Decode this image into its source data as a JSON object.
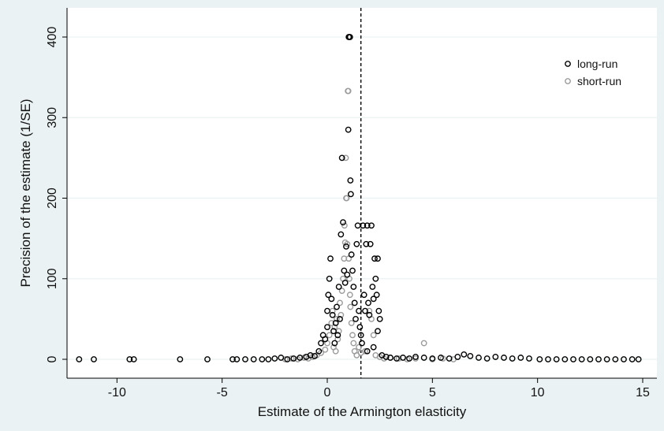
{
  "chart_data": {
    "type": "scatter",
    "title": "",
    "xlabel": "Estimate of the Armington elasticity",
    "ylabel": "Precision of the estimate (1/SE)",
    "xlim": [
      -12,
      15
    ],
    "ylim": [
      0,
      400
    ],
    "xticks": [
      -10,
      -5,
      0,
      5,
      10,
      15
    ],
    "yticks": [
      0,
      100,
      200,
      300,
      400
    ],
    "grid": "horizontal",
    "legend_position": "top-right",
    "reference_line": {
      "x": 1.6,
      "style": "dashed"
    },
    "series": [
      {
        "name": "long-run",
        "color": "#000000",
        "points": [
          [
            -11.8,
            0
          ],
          [
            -11.1,
            0
          ],
          [
            -9.4,
            0
          ],
          [
            -9.2,
            0
          ],
          [
            -7.0,
            0
          ],
          [
            -5.7,
            0
          ],
          [
            -4.5,
            0
          ],
          [
            -4.3,
            0
          ],
          [
            -3.9,
            0
          ],
          [
            -3.5,
            0
          ],
          [
            -3.1,
            0
          ],
          [
            -2.8,
            0
          ],
          [
            -2.5,
            1
          ],
          [
            -2.2,
            2
          ],
          [
            -1.9,
            0
          ],
          [
            -1.6,
            1
          ],
          [
            -1.3,
            2
          ],
          [
            -1.0,
            3
          ],
          [
            -0.8,
            5
          ],
          [
            -0.6,
            4
          ],
          [
            -0.4,
            10
          ],
          [
            -0.3,
            20
          ],
          [
            -0.2,
            30
          ],
          [
            -0.1,
            25
          ],
          [
            0.0,
            40
          ],
          [
            0.0,
            60
          ],
          [
            0.05,
            80
          ],
          [
            0.1,
            100
          ],
          [
            0.15,
            125
          ],
          [
            0.2,
            75
          ],
          [
            0.25,
            55
          ],
          [
            0.3,
            35
          ],
          [
            0.35,
            20
          ],
          [
            0.4,
            45
          ],
          [
            0.45,
            65
          ],
          [
            0.5,
            30
          ],
          [
            0.55,
            90
          ],
          [
            0.6,
            50
          ],
          [
            0.65,
            155
          ],
          [
            0.7,
            250
          ],
          [
            0.75,
            170
          ],
          [
            0.8,
            110
          ],
          [
            0.85,
            95
          ],
          [
            0.9,
            140
          ],
          [
            0.95,
            105
          ],
          [
            1.0,
            285
          ],
          [
            1.02,
            400
          ],
          [
            1.05,
            400
          ],
          [
            1.08,
            400
          ],
          [
            1.1,
            222
          ],
          [
            1.12,
            205
          ],
          [
            1.15,
            130
          ],
          [
            1.2,
            110
          ],
          [
            1.25,
            90
          ],
          [
            1.3,
            70
          ],
          [
            1.35,
            50
          ],
          [
            1.4,
            143
          ],
          [
            1.45,
            166
          ],
          [
            1.5,
            60
          ],
          [
            1.55,
            40
          ],
          [
            1.6,
            30
          ],
          [
            1.7,
            166
          ],
          [
            1.75,
            80
          ],
          [
            1.8,
            60
          ],
          [
            1.85,
            143
          ],
          [
            1.9,
            166
          ],
          [
            1.95,
            70
          ],
          [
            2.0,
            55
          ],
          [
            2.05,
            143
          ],
          [
            2.1,
            166
          ],
          [
            2.15,
            90
          ],
          [
            2.2,
            75
          ],
          [
            2.25,
            125
          ],
          [
            2.3,
            100
          ],
          [
            2.35,
            80
          ],
          [
            2.4,
            125
          ],
          [
            2.45,
            60
          ],
          [
            2.5,
            50
          ],
          [
            1.65,
            20
          ],
          [
            1.9,
            10
          ],
          [
            2.2,
            15
          ],
          [
            2.4,
            35
          ],
          [
            2.6,
            5
          ],
          [
            2.8,
            3
          ],
          [
            3.0,
            2
          ],
          [
            3.3,
            1
          ],
          [
            3.6,
            2
          ],
          [
            3.9,
            1
          ],
          [
            4.2,
            3
          ],
          [
            4.6,
            2
          ],
          [
            5.0,
            1
          ],
          [
            5.4,
            2
          ],
          [
            5.8,
            1
          ],
          [
            6.2,
            3
          ],
          [
            6.5,
            6
          ],
          [
            6.8,
            4
          ],
          [
            7.2,
            2
          ],
          [
            7.6,
            1
          ],
          [
            8.0,
            3
          ],
          [
            8.4,
            2
          ],
          [
            8.8,
            1
          ],
          [
            9.2,
            2
          ],
          [
            9.6,
            1
          ],
          [
            10.1,
            0
          ],
          [
            10.5,
            0
          ],
          [
            10.9,
            0
          ],
          [
            11.3,
            0
          ],
          [
            11.7,
            0
          ],
          [
            12.1,
            0
          ],
          [
            12.5,
            0
          ],
          [
            12.9,
            0
          ],
          [
            13.3,
            0
          ],
          [
            13.7,
            0
          ],
          [
            14.1,
            0
          ],
          [
            14.5,
            0
          ],
          [
            14.8,
            0
          ]
        ]
      },
      {
        "name": "short-run",
        "color": "#9b9b9b",
        "points": [
          [
            -2.0,
            0
          ],
          [
            -1.7,
            1
          ],
          [
            -1.4,
            0
          ],
          [
            -1.1,
            2
          ],
          [
            -0.9,
            1
          ],
          [
            -0.7,
            3
          ],
          [
            -0.5,
            5
          ],
          [
            -0.3,
            8
          ],
          [
            -0.1,
            12
          ],
          [
            0.0,
            20
          ],
          [
            0.1,
            30
          ],
          [
            0.2,
            45
          ],
          [
            0.25,
            60
          ],
          [
            0.3,
            15
          ],
          [
            0.35,
            40
          ],
          [
            0.4,
            10
          ],
          [
            0.45,
            50
          ],
          [
            0.5,
            25
          ],
          [
            0.55,
            35
          ],
          [
            0.6,
            70
          ],
          [
            0.65,
            55
          ],
          [
            0.7,
            85
          ],
          [
            0.75,
            100
          ],
          [
            0.8,
            125
          ],
          [
            0.82,
            166
          ],
          [
            0.85,
            145
          ],
          [
            0.88,
            250
          ],
          [
            0.9,
            200
          ],
          [
            0.92,
            200
          ],
          [
            0.95,
            143
          ],
          [
            0.98,
            333
          ],
          [
            1.0,
            333
          ],
          [
            1.02,
            125
          ],
          [
            1.05,
            100
          ],
          [
            1.08,
            80
          ],
          [
            1.1,
            65
          ],
          [
            1.15,
            45
          ],
          [
            1.2,
            30
          ],
          [
            1.25,
            20
          ],
          [
            1.3,
            10
          ],
          [
            1.4,
            5
          ],
          [
            1.5,
            15
          ],
          [
            1.6,
            8
          ],
          [
            1.8,
            10
          ],
          [
            2.0,
            60
          ],
          [
            2.1,
            50
          ],
          [
            2.2,
            30
          ],
          [
            2.3,
            5
          ],
          [
            2.5,
            3
          ],
          [
            2.7,
            1
          ],
          [
            3.0,
            2
          ],
          [
            3.4,
            1
          ],
          [
            3.8,
            0
          ],
          [
            4.2,
            1
          ],
          [
            4.6,
            20
          ],
          [
            5.0,
            0
          ],
          [
            5.5,
            1
          ],
          [
            6.0,
            0
          ]
        ]
      }
    ]
  }
}
